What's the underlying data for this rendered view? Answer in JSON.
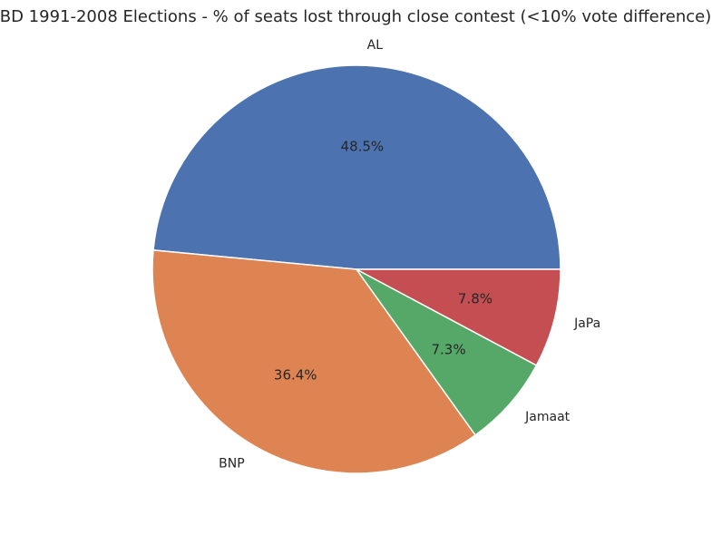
{
  "chart_data": {
    "type": "pie",
    "title": "BD 1991-2008 Elections - % of seats lost through close contest (<10% vote difference)",
    "labels": [
      "AL",
      "BNP",
      "Jamaat",
      "JaPa"
    ],
    "values": [
      48.5,
      36.4,
      7.3,
      7.8
    ],
    "pct_labels": [
      "48.5%",
      "36.4%",
      "7.3%",
      "7.8%"
    ],
    "colors": [
      "#4c72b0",
      "#dd8452",
      "#55a868",
      "#c44e52"
    ],
    "start_angle": 0,
    "direction": "counterclockwise",
    "legend": "none"
  }
}
